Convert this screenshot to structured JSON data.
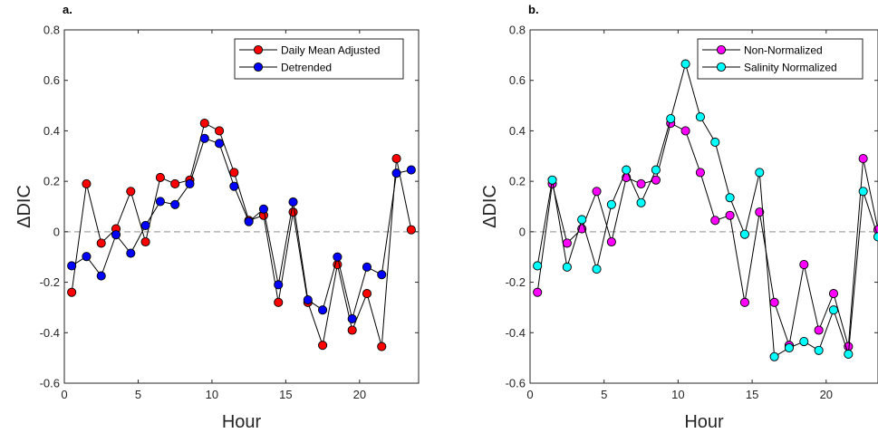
{
  "colors": {
    "daily_mean_adjusted": "#ff0000",
    "detrended": "#0000ff",
    "non_normalized": "#ff00ff",
    "salinity_normalized": "#00ffff",
    "line": "#000000",
    "zero_line": "#a6a6a6"
  },
  "chart_data": [
    {
      "type": "line",
      "panel_label": "a.",
      "xlabel": "Hour",
      "ylabel": "ΔDIC",
      "xlim": [
        0,
        24
      ],
      "ylim": [
        -0.6,
        0.8
      ],
      "xticks": [
        0,
        5,
        10,
        15,
        20
      ],
      "yticks": [
        -0.6,
        -0.4,
        -0.2,
        0,
        0.2,
        0.4,
        0.6,
        0.8
      ],
      "zero_reference_line": "dashed",
      "legend_position": "top-right",
      "x": [
        0.5,
        1.5,
        2.5,
        3.5,
        4.5,
        5.5,
        6.5,
        7.5,
        8.5,
        9.5,
        10.5,
        11.5,
        12.5,
        13.5,
        14.5,
        15.5,
        16.5,
        17.5,
        18.5,
        19.5,
        20.5,
        21.5,
        22.5,
        23.5
      ],
      "series": [
        {
          "name": "Daily Mean Adjusted",
          "color_key": "daily_mean_adjusted",
          "values": [
            -0.24,
            0.19,
            -0.045,
            0.012,
            0.16,
            -0.04,
            0.215,
            0.19,
            0.205,
            0.43,
            0.4,
            0.235,
            0.045,
            0.065,
            -0.28,
            0.078,
            -0.28,
            -0.45,
            -0.13,
            -0.39,
            -0.245,
            -0.455,
            0.29,
            0.008
          ]
        },
        {
          "name": "Detrended",
          "color_key": "detrended",
          "values": [
            -0.135,
            -0.098,
            -0.175,
            -0.012,
            -0.085,
            0.025,
            0.12,
            0.108,
            0.19,
            0.37,
            0.35,
            0.18,
            0.04,
            0.09,
            -0.21,
            0.118,
            -0.27,
            -0.31,
            -0.1,
            -0.345,
            -0.14,
            -0.17,
            0.232,
            0.245
          ]
        }
      ]
    },
    {
      "type": "line",
      "panel_label": "b.",
      "xlabel": "Hour",
      "ylabel": "ΔDIC",
      "xlim": [
        0,
        23.5
      ],
      "ylim": [
        -0.6,
        0.8
      ],
      "xticks": [
        0,
        5,
        10,
        15,
        20
      ],
      "yticks": [
        -0.6,
        -0.4,
        -0.2,
        0,
        0.2,
        0.4,
        0.6,
        0.8
      ],
      "zero_reference_line": "dashed",
      "legend_position": "top-right",
      "x": [
        0.5,
        1.5,
        2.5,
        3.5,
        4.5,
        5.5,
        6.5,
        7.5,
        8.5,
        9.5,
        10.5,
        11.5,
        12.5,
        13.5,
        14.5,
        15.5,
        16.5,
        17.5,
        18.5,
        19.5,
        20.5,
        21.5,
        22.5,
        23.5
      ],
      "series": [
        {
          "name": "Non-Normalized",
          "color_key": "non_normalized",
          "values": [
            -0.24,
            0.19,
            -0.045,
            0.012,
            0.16,
            -0.04,
            0.215,
            0.19,
            0.205,
            0.43,
            0.4,
            0.235,
            0.045,
            0.065,
            -0.28,
            0.078,
            -0.28,
            -0.45,
            -0.13,
            -0.39,
            -0.245,
            -0.455,
            0.29,
            0.008
          ]
        },
        {
          "name": "Salinity Normalized",
          "color_key": "salinity_normalized",
          "values": [
            -0.135,
            0.205,
            -0.14,
            0.048,
            -0.148,
            0.108,
            0.245,
            0.115,
            0.245,
            0.448,
            0.665,
            0.455,
            0.355,
            0.135,
            -0.01,
            0.235,
            -0.495,
            -0.46,
            -0.435,
            -0.47,
            -0.31,
            -0.485,
            0.16,
            -0.02
          ]
        }
      ]
    }
  ]
}
